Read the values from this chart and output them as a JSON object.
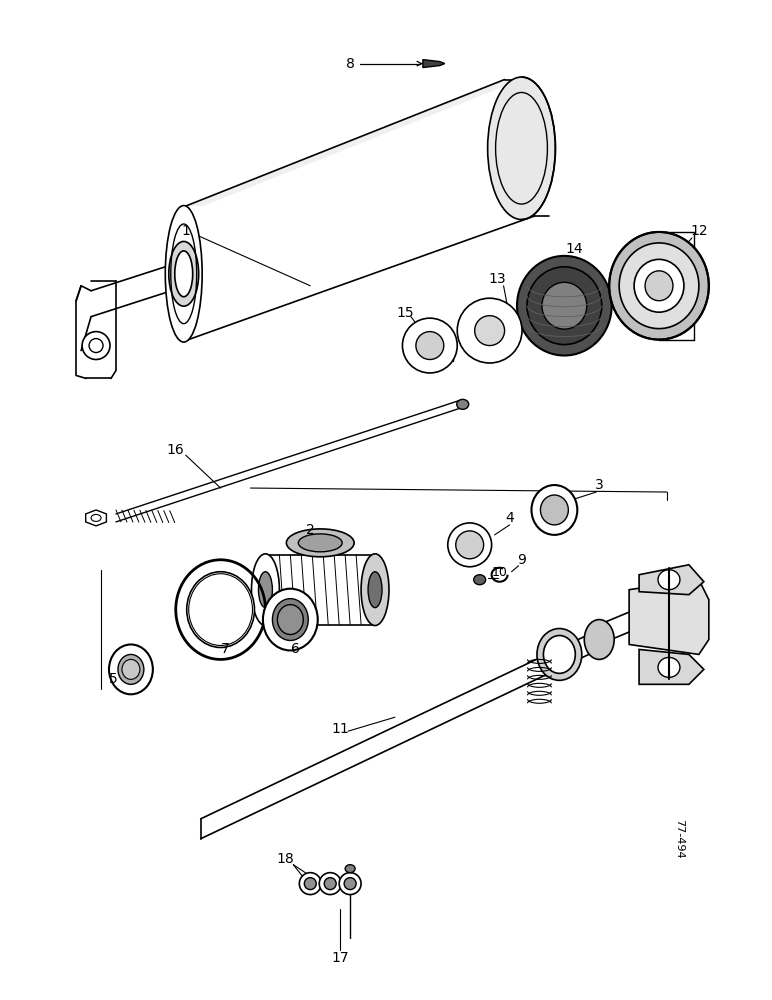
{
  "bg_color": "#ffffff",
  "line_color": "#000000",
  "fig_width": 7.72,
  "fig_height": 10.0,
  "dpi": 100,
  "watermark": "77-494"
}
